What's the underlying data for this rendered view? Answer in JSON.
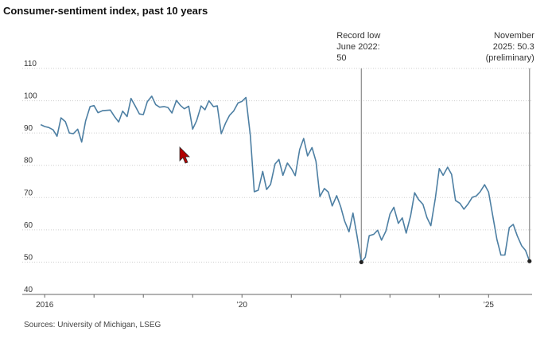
{
  "chart_data": {
    "type": "line",
    "title": "Consumer-sentiment index, past 10 years",
    "source": "Sources: University of Michigan, LSEG",
    "ylim": [
      40,
      110
    ],
    "y_ticks": [
      40,
      50,
      60,
      70,
      80,
      90,
      100,
      110
    ],
    "x_ticks": [
      {
        "x": 2016.0,
        "label": "2016"
      },
      {
        "x": 2020.0,
        "label": "’20"
      },
      {
        "x": 2025.0,
        "label": "’25"
      }
    ],
    "x_range": [
      2015.9,
      2025.85
    ],
    "grid": true,
    "color": "#4d7fa3",
    "series": [
      {
        "x": [
          2015.92,
          2016.0,
          2016.08,
          2016.17,
          2016.25,
          2016.33,
          2016.42,
          2016.5,
          2016.58,
          2016.67,
          2016.75,
          2016.83,
          2016.92,
          2017.0,
          2017.08,
          2017.17,
          2017.25,
          2017.33,
          2017.42,
          2017.5,
          2017.58,
          2017.67,
          2017.75,
          2017.83,
          2017.92,
          2018.0,
          2018.08,
          2018.17,
          2018.25,
          2018.33,
          2018.42,
          2018.5,
          2018.58,
          2018.67,
          2018.75,
          2018.83,
          2018.92,
          2019.0,
          2019.08,
          2019.17,
          2019.25,
          2019.33,
          2019.42,
          2019.5,
          2019.58,
          2019.67,
          2019.75,
          2019.83,
          2019.92,
          2020.0,
          2020.08,
          2020.17,
          2020.25,
          2020.33,
          2020.42,
          2020.5,
          2020.58,
          2020.67,
          2020.75,
          2020.83,
          2020.92,
          2021.0,
          2021.08,
          2021.17,
          2021.25,
          2021.33,
          2021.42,
          2021.5,
          2021.58,
          2021.67,
          2021.75,
          2021.83,
          2021.92,
          2022.0,
          2022.08,
          2022.17,
          2022.25,
          2022.33,
          2022.42,
          2022.5,
          2022.58,
          2022.67,
          2022.75,
          2022.83,
          2022.92,
          2023.0,
          2023.08,
          2023.17,
          2023.25,
          2023.33,
          2023.42,
          2023.5,
          2023.58,
          2023.67,
          2023.75,
          2023.83,
          2023.92,
          2024.0,
          2024.08,
          2024.17,
          2024.25,
          2024.33,
          2024.42,
          2024.5,
          2024.58,
          2024.67,
          2024.75,
          2024.83,
          2024.92,
          2025.0,
          2025.08,
          2025.17,
          2025.25,
          2025.33,
          2025.42,
          2025.5,
          2025.58,
          2025.67,
          2025.75,
          2025.83
        ],
        "y": [
          92.6,
          92.0,
          91.7,
          91.0,
          89.0,
          94.7,
          93.5,
          90.0,
          89.8,
          91.2,
          87.2,
          93.8,
          98.2,
          98.5,
          96.3,
          96.9,
          97.0,
          97.1,
          95.0,
          93.4,
          96.8,
          95.1,
          100.7,
          98.5,
          95.9,
          95.7,
          99.7,
          101.4,
          98.8,
          98.0,
          98.2,
          97.9,
          96.2,
          100.1,
          98.6,
          97.5,
          98.3,
          91.2,
          93.8,
          98.4,
          97.2,
          100.0,
          98.2,
          98.4,
          89.8,
          93.2,
          95.5,
          96.8,
          99.3,
          99.8,
          101.0,
          89.1,
          71.8,
          72.3,
          78.1,
          72.5,
          74.1,
          80.4,
          81.8,
          76.9,
          80.7,
          79.0,
          76.8,
          84.9,
          88.3,
          82.9,
          85.5,
          81.2,
          70.3,
          72.8,
          71.7,
          67.4,
          70.6,
          67.2,
          62.8,
          59.4,
          65.2,
          58.4,
          50.0,
          51.5,
          58.2,
          58.6,
          59.9,
          56.8,
          59.7,
          64.9,
          67.0,
          62.0,
          63.7,
          59.0,
          64.4,
          71.5,
          69.4,
          67.9,
          63.8,
          61.3,
          69.7,
          79.0,
          76.9,
          79.4,
          77.2,
          69.1,
          68.2,
          66.4,
          67.9,
          70.1,
          70.5,
          71.8,
          74.0,
          71.7,
          64.7,
          57.0,
          52.2,
          52.2,
          60.7,
          61.7,
          58.2,
          55.1,
          53.6,
          50.3
        ]
      }
    ],
    "annotations": [
      {
        "x": 2022.42,
        "y": 50.0,
        "lines": [
          "Record low",
          "June 2022:",
          "50"
        ],
        "align": "left"
      },
      {
        "x": 2025.83,
        "y": 50.3,
        "lines": [
          "November",
          "2025: 50.3",
          "(preliminary)"
        ],
        "align": "right"
      }
    ]
  }
}
